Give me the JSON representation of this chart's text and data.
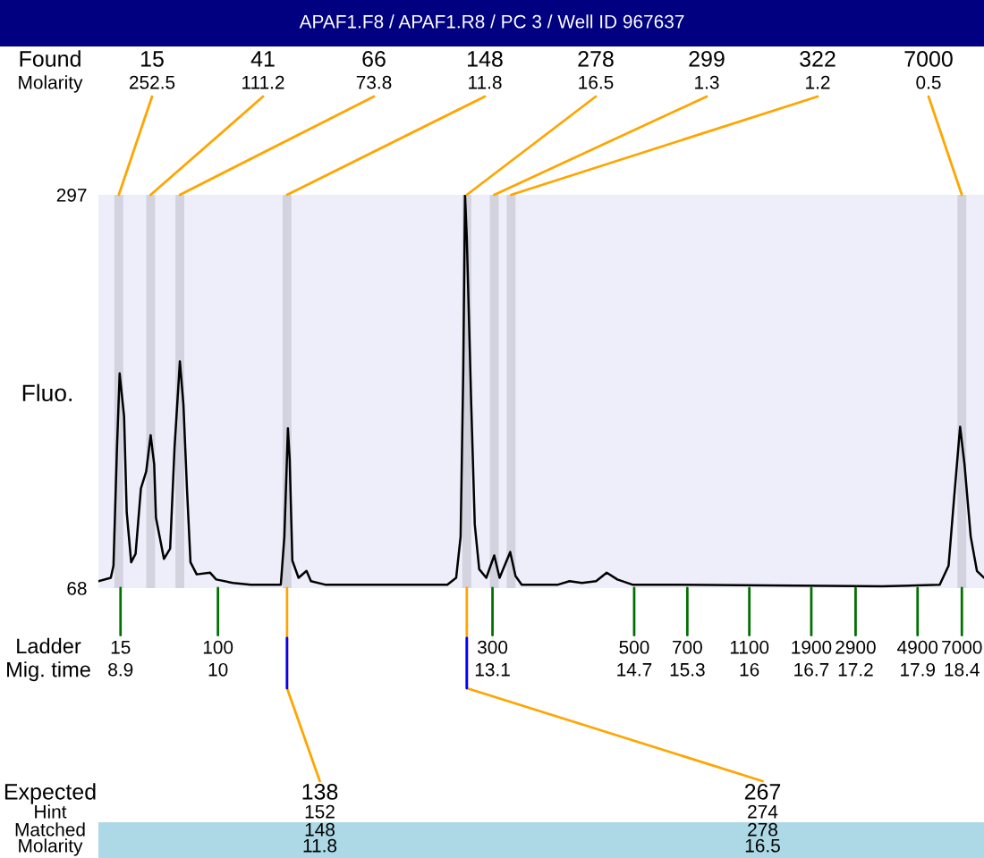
{
  "chart_data": {
    "type": "line",
    "title": "APAF1.F8 / APAF1.R8 / PC 3 / Well ID 967637",
    "xlabel": "Ladder\nMig. time",
    "ylabel": "Fluo.",
    "x": [
      8.65,
      8.79,
      8.82,
      8.86,
      8.89,
      8.94,
      8.97,
      9.02,
      9.07,
      9.13,
      9.19,
      9.24,
      9.28,
      9.3,
      9.39,
      9.46,
      9.51,
      9.57,
      9.61,
      9.65,
      9.69,
      9.76,
      9.91,
      9.98,
      10.17,
      10.37,
      10.71,
      10.75,
      10.79,
      10.81,
      10.84,
      10.91,
      11.0,
      11.05,
      11.21,
      12.59,
      12.69,
      12.74,
      12.77,
      12.79,
      12.81,
      12.86,
      12.9,
      12.95,
      13.03,
      13.12,
      13.18,
      13.3,
      13.36,
      13.43,
      13.84,
      13.97,
      14.11,
      14.27,
      14.39,
      14.51,
      14.68,
      15.15,
      17.5,
      18.15,
      18.25,
      18.31,
      18.38,
      18.43,
      18.5,
      18.57,
      18.65
    ],
    "series": [
      {
        "color": "#000000",
        "values": [
          72,
          74,
          81,
          150,
          193,
          168,
          112,
          83,
          88,
          126,
          136,
          157,
          140,
          109,
          85,
          91,
          150,
          200,
          175,
          126,
          83,
          76,
          77,
          73,
          71,
          70,
          70,
          98,
          161,
          143,
          84,
          74,
          78,
          72,
          70,
          70,
          74,
          98,
          195,
          297,
          272,
          175,
          105,
          79,
          74,
          87,
          74,
          89,
          75,
          70,
          70,
          72,
          71,
          72,
          77,
          73,
          70,
          70,
          69,
          70,
          81,
          119,
          162,
          140,
          98,
          78,
          74
        ]
      }
    ],
    "xlim": [
      8.65,
      18.65
    ],
    "ylim": [
      68,
      297
    ],
    "yticks": [
      68,
      297
    ],
    "xticks": [
      8.9,
      10,
      13.1,
      14.7,
      15.3,
      16,
      16.7,
      17.2,
      17.9,
      18.4
    ],
    "bands": [
      {
        "axis": "x",
        "from": 8.83,
        "to": 8.93,
        "color": "#d3d3e0"
      },
      {
        "axis": "x",
        "from": 9.19,
        "to": 9.29,
        "color": "#d3d3e0"
      },
      {
        "axis": "x",
        "from": 9.52,
        "to": 9.62,
        "color": "#d3d3e0"
      },
      {
        "axis": "x",
        "from": 10.73,
        "to": 10.83,
        "color": "#d3d3e0"
      },
      {
        "axis": "x",
        "from": 12.76,
        "to": 12.86,
        "color": "#d3d3e0"
      },
      {
        "axis": "x",
        "from": 13.07,
        "to": 13.17,
        "color": "#d3d3e0"
      },
      {
        "axis": "x",
        "from": 13.26,
        "to": 13.36,
        "color": "#d3d3e0"
      },
      {
        "axis": "x",
        "from": 18.35,
        "to": 18.45,
        "color": "#d3d3e0"
      }
    ],
    "annotations": [
      "Found\nMolarity",
      {
        "text": "15\n252.5",
        "x": 8.88,
        "y": 297
      },
      {
        "text": "41\n111.2",
        "x": 9.24,
        "y": 297
      },
      {
        "text": "66\n73.8",
        "x": 9.57,
        "y": 297
      },
      {
        "text": "148\n11.8",
        "x": 10.78,
        "y": 297
      },
      {
        "text": "278\n16.5",
        "x": 12.81,
        "y": 297
      },
      {
        "text": "299\n1.3",
        "x": 13.12,
        "y": 297
      },
      {
        "text": "322\n1.2",
        "x": 13.31,
        "y": 297
      },
      {
        "text": "7000\n0.5",
        "x": 18.4,
        "y": 297
      },
      {
        "text": "15",
        "x": 8.9,
        "y": 68
      },
      {
        "text": "100",
        "x": 10,
        "y": 68
      },
      {
        "text": "300",
        "x": 13.1,
        "y": 68
      },
      {
        "text": "500",
        "x": 14.7,
        "y": 68
      },
      {
        "text": "700",
        "x": 15.3,
        "y": 68
      },
      {
        "text": "1100",
        "x": 16,
        "y": 68
      },
      {
        "text": "1900",
        "x": 16.7,
        "y": 68
      },
      {
        "text": "2900",
        "x": 17.2,
        "y": 68
      },
      {
        "text": "4900",
        "x": 17.9,
        "y": 68
      },
      {
        "text": "7000",
        "x": 18.4,
        "y": 68
      },
      "Expected\nHint\nMatched\nMolarity",
      {
        "text": "138\n152\n148\n11.8",
        "x": 10.78,
        "y": 68
      },
      {
        "text": "267\n274\n278\n16.5",
        "x": 12.81,
        "y": 68
      }
    ]
  }
}
